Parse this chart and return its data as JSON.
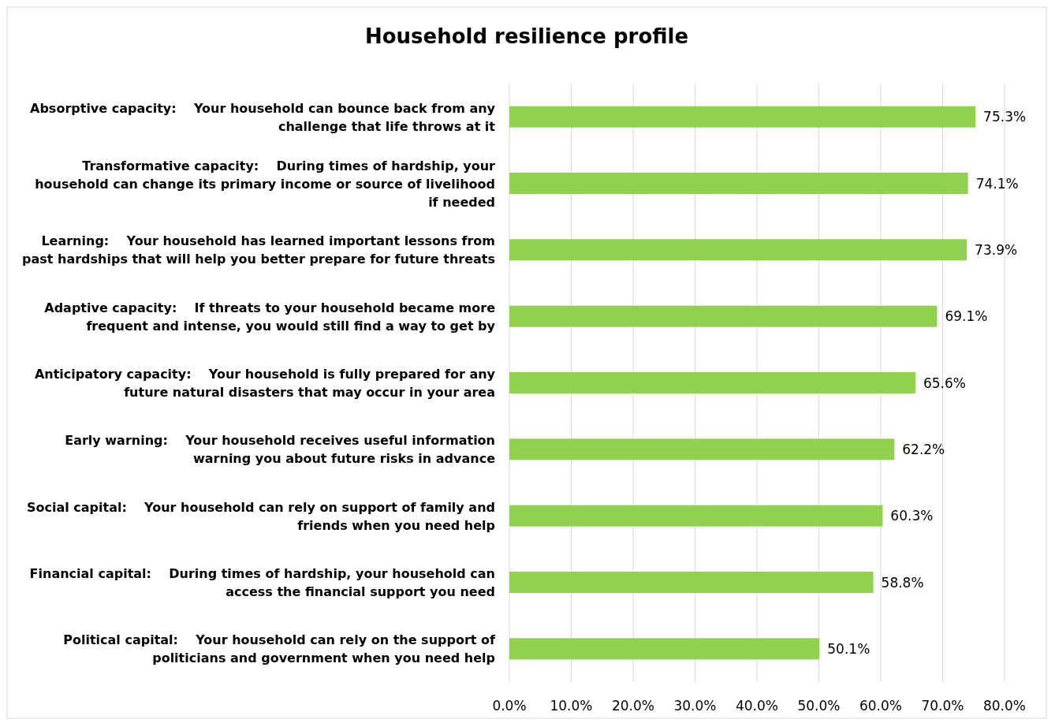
{
  "chart_data": {
    "type": "bar",
    "orientation": "horizontal",
    "title": "Household resilience profile",
    "categories": [
      "Absorptive capacity:    Your household can bounce back from any challenge that life throws at it",
      "Transformative capacity:    During times of hardship, your household can change its primary income or source of livelihood if needed",
      "Learning:    Your household has learned important lessons from past hardships that will help you better prepare for future threats",
      "Adaptive capacity:    If threats to your household became more frequent and intense, you would still find a way to get by",
      "Anticipatory capacity:    Your household is fully prepared for any future natural disasters that may occur in your area",
      "Early warning:    Your household receives useful information warning you about future risks in advance",
      "Social capital:    Your household can rely on support of family and friends when you need help",
      "Financial capital:    During times of hardship, your household can access the financial support you need",
      "Political capital:    Your household can rely on the support of politicians and government when you need help"
    ],
    "values": [
      75.3,
      74.1,
      73.9,
      69.1,
      65.6,
      62.2,
      60.3,
      58.8,
      50.1
    ],
    "value_labels": [
      "75.3%",
      "74.1%",
      "73.9%",
      "69.1%",
      "65.6%",
      "62.2%",
      "60.3%",
      "58.8%",
      "50.1%"
    ],
    "color": "#92d050",
    "xlim": [
      0,
      80
    ],
    "xticks": [
      {
        "value": 0,
        "label": "0.0%"
      },
      {
        "value": 10,
        "label": "10.0%"
      },
      {
        "value": 20,
        "label": "20.0%"
      },
      {
        "value": 30,
        "label": "30.0%"
      },
      {
        "value": 40,
        "label": "40.0%"
      },
      {
        "value": 50,
        "label": "50.0%"
      },
      {
        "value": 60,
        "label": "60.0%"
      },
      {
        "value": 70,
        "label": "70.0%"
      },
      {
        "value": 80,
        "label": "80.0%"
      }
    ],
    "grid": "x"
  }
}
